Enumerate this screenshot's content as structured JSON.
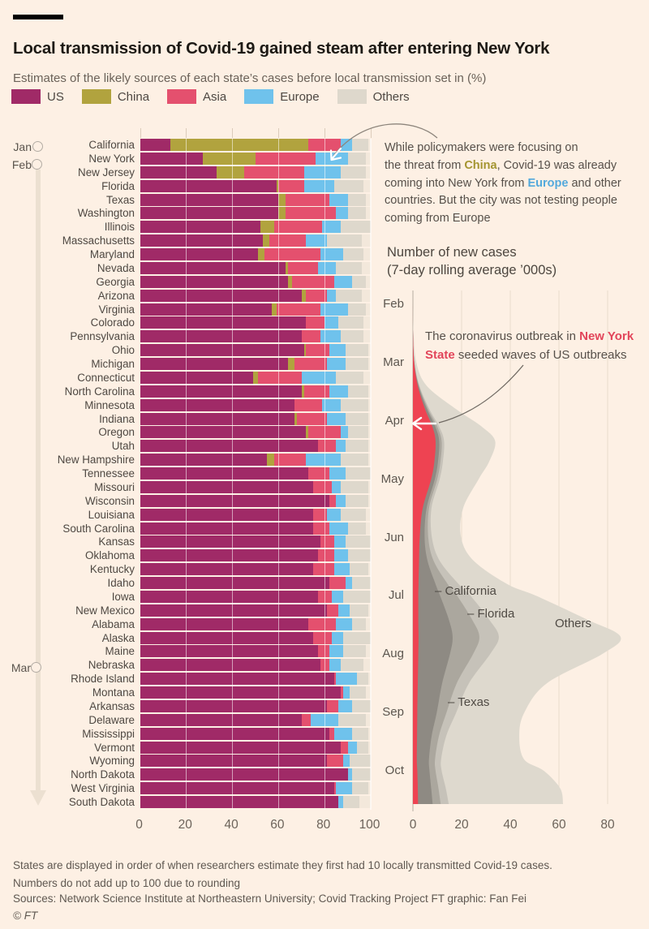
{
  "palette": {
    "china": "#a49531",
    "europe": "#53a9dc",
    "ny_red": "#e2455a",
    "background": "#fdf0e4"
  },
  "header": {
    "title": "Local transmission of Covid-19 gained steam after entering New York",
    "subtitle": "Estimates of the likely sources of each state’s cases before local transmission set in (%)"
  },
  "legend": [
    {
      "label": "US",
      "color": "#a02a67"
    },
    {
      "label": "China",
      "color": "#b1a33e"
    },
    {
      "label": "Asia",
      "color": "#e4506e"
    },
    {
      "label": "Europe",
      "color": "#6fc2ec"
    },
    {
      "label": "Others",
      "color": "#ded8cc"
    }
  ],
  "timeline": {
    "jan": "Jan",
    "feb": "Feb",
    "mar": "Mar"
  },
  "annotation_policy": {
    "parts": [
      {
        "text": "While policymakers were focusing on\nthe threat from "
      },
      {
        "text": "China",
        "color": "china"
      },
      {
        "text": ", Covid-19 was already\ncoming into New York from "
      },
      {
        "text": "Europe",
        "color": "europe"
      },
      {
        "text": " and other\ncountries. But the city was not testing people\ncoming from Europe"
      }
    ]
  },
  "right_chart_title": {
    "line1": "Number of new cases",
    "line2": "(7-day rolling average ’000s)"
  },
  "annotation_ny": {
    "parts": [
      {
        "text": "The coronavirus outbreak in "
      },
      {
        "text": "New York\nState",
        "color": "ny_red"
      },
      {
        "text": " seeded waves of US outbreaks"
      }
    ]
  },
  "stream_labels": {
    "california": "– California",
    "florida": "– Florida",
    "others": "Others",
    "texas": "– Texas"
  },
  "footer": {
    "note": "States are displayed in order of when researchers estimate they first had 10 locally transmitted Covid-19 cases. Numbers do not add up to 100 due to rounding",
    "sources": "Sources: Network Science Institute at Northeastern University; Covid Tracking Project  FT graphic: Fan Fei",
    "copyright": "© FT"
  },
  "chart_data": [
    {
      "type": "bar",
      "stacked": true,
      "orientation": "horizontal",
      "title": "Estimates of the likely sources of each state's cases before local transmission set in (%)",
      "series": [
        "US",
        "China",
        "Asia",
        "Europe",
        "Others"
      ],
      "colors": [
        "#a02a67",
        "#b1a33e",
        "#e4506e",
        "#6fc2ec",
        "#ded8cc"
      ],
      "x_ticks": [
        0,
        20,
        40,
        60,
        80,
        100
      ],
      "xlim": [
        0,
        100
      ],
      "states": [
        {
          "name": "California",
          "values": [
            13,
            60,
            14,
            5,
            7
          ]
        },
        {
          "name": "New York",
          "values": [
            27,
            23,
            26,
            14,
            8
          ]
        },
        {
          "name": "New Jersey",
          "values": [
            33,
            12,
            26,
            16,
            11
          ]
        },
        {
          "name": "Florida",
          "values": [
            59,
            1,
            11,
            13,
            13
          ]
        },
        {
          "name": "Texas",
          "values": [
            60,
            3,
            19,
            8,
            8
          ]
        },
        {
          "name": "Washington",
          "values": [
            60,
            3,
            22,
            5,
            8
          ]
        },
        {
          "name": "Illinois",
          "values": [
            52,
            6,
            21,
            8,
            13
          ]
        },
        {
          "name": "Massachusetts",
          "values": [
            53,
            3,
            16,
            9,
            15
          ]
        },
        {
          "name": "Maryland",
          "values": [
            51,
            3,
            24,
            10,
            9
          ]
        },
        {
          "name": "Nevada",
          "values": [
            63,
            1,
            13,
            8,
            11
          ]
        },
        {
          "name": "Georgia",
          "values": [
            64,
            2,
            18,
            8,
            6
          ]
        },
        {
          "name": "Arizona",
          "values": [
            70,
            2,
            9,
            4,
            11
          ]
        },
        {
          "name": "Virginia",
          "values": [
            57,
            2,
            19,
            12,
            8
          ]
        },
        {
          "name": "Colorado",
          "values": [
            72,
            0,
            8,
            6,
            11
          ]
        },
        {
          "name": "Pennsylvania",
          "values": [
            70,
            0,
            8,
            9,
            10
          ]
        },
        {
          "name": "Ohio",
          "values": [
            71,
            1,
            10,
            7,
            10
          ]
        },
        {
          "name": "Michigan",
          "values": [
            64,
            3,
            14,
            8,
            10
          ]
        },
        {
          "name": "Connecticut",
          "values": [
            49,
            2,
            19,
            15,
            12
          ]
        },
        {
          "name": "North Carolina",
          "values": [
            70,
            1,
            11,
            8,
            9
          ]
        },
        {
          "name": "Minnesota",
          "values": [
            67,
            0,
            12,
            8,
            12
          ]
        },
        {
          "name": "Indiana",
          "values": [
            67,
            1,
            13,
            8,
            10
          ]
        },
        {
          "name": "Oregon",
          "values": [
            72,
            1,
            14,
            3,
            9
          ]
        },
        {
          "name": "Utah",
          "values": [
            77,
            0,
            8,
            4,
            10
          ]
        },
        {
          "name": "New Hampshire",
          "values": [
            55,
            3,
            14,
            15,
            12
          ]
        },
        {
          "name": "Tennessee",
          "values": [
            73,
            0,
            9,
            7,
            11
          ]
        },
        {
          "name": "Missouri",
          "values": [
            75,
            0,
            8,
            4,
            12
          ]
        },
        {
          "name": "Wisconsin",
          "values": [
            82,
            0,
            3,
            4,
            10
          ]
        },
        {
          "name": "Louisiana",
          "values": [
            75,
            0,
            6,
            6,
            11
          ]
        },
        {
          "name": "South Carolina",
          "values": [
            75,
            0,
            7,
            8,
            8
          ]
        },
        {
          "name": "Kansas",
          "values": [
            78,
            0,
            6,
            5,
            11
          ]
        },
        {
          "name": "Oklahoma",
          "values": [
            77,
            0,
            7,
            6,
            10
          ]
        },
        {
          "name": "Kentucky",
          "values": [
            75,
            0,
            9,
            7,
            8
          ]
        },
        {
          "name": "Idaho",
          "values": [
            82,
            0,
            7,
            3,
            8
          ]
        },
        {
          "name": "Iowa",
          "values": [
            77,
            0,
            6,
            5,
            12
          ]
        },
        {
          "name": "New Mexico",
          "values": [
            81,
            0,
            5,
            5,
            8
          ]
        },
        {
          "name": "Alabama",
          "values": [
            73,
            0,
            12,
            7,
            6
          ]
        },
        {
          "name": "Alaska",
          "values": [
            75,
            0,
            8,
            5,
            12
          ]
        },
        {
          "name": "Maine",
          "values": [
            77,
            0,
            5,
            6,
            10
          ]
        },
        {
          "name": "Nebraska",
          "values": [
            78,
            0,
            4,
            5,
            10
          ]
        },
        {
          "name": "Rhode Island",
          "values": [
            84,
            0,
            1,
            9,
            5
          ]
        },
        {
          "name": "Montana",
          "values": [
            87,
            0,
            1,
            3,
            7
          ]
        },
        {
          "name": "Arkansas",
          "values": [
            81,
            0,
            5,
            6,
            8
          ]
        },
        {
          "name": "Delaware",
          "values": [
            70,
            0,
            4,
            12,
            12
          ]
        },
        {
          "name": "Mississippi",
          "values": [
            82,
            0,
            2,
            8,
            7
          ]
        },
        {
          "name": "Vermont",
          "values": [
            87,
            0,
            3,
            4,
            5
          ]
        },
        {
          "name": "Wyoming",
          "values": [
            81,
            0,
            7,
            3,
            9
          ]
        },
        {
          "name": "North Dakota",
          "values": [
            90,
            0,
            0,
            2,
            8
          ]
        },
        {
          "name": "West Virginia",
          "values": [
            84,
            0,
            1,
            7,
            7
          ]
        },
        {
          "name": "South Dakota",
          "values": [
            86,
            0,
            0,
            2,
            7
          ]
        }
      ]
    },
    {
      "type": "area",
      "stacked": true,
      "title": "Number of new cases (7-day rolling average '000s)",
      "time_axis": "vertical, Feb (top) to Oct (bottom)",
      "months": [
        "Feb",
        "Mar",
        "Apr",
        "May",
        "Jun",
        "Jul",
        "Aug",
        "Sep",
        "Oct"
      ],
      "x_ticks": [
        0,
        20,
        40,
        60,
        80
      ],
      "xlim": [
        0,
        80
      ],
      "t_months_from_feb": [
        0,
        0.5,
        1,
        1.4,
        1.8,
        2.1,
        2.35,
        2.7,
        3,
        3.5,
        4,
        4.4,
        4.8,
        5,
        5.4,
        5.7,
        6,
        6.5,
        7,
        7.4,
        7.8,
        8,
        8.3,
        8.57
      ],
      "series": [
        {
          "name": "New York State",
          "color": "#ee4352",
          "values": [
            0,
            0.05,
            0.5,
            2,
            5,
            8,
            9.3,
            8.8,
            7.5,
            4,
            2.8,
            2.5,
            2.3,
            2.2,
            2.2,
            2.3,
            2.2,
            2,
            1.8,
            1.7,
            1.6,
            1.8,
            2,
            2.1
          ]
        },
        {
          "name": "California",
          "color": "#8e8a83",
          "values": [
            0,
            0,
            0.1,
            0.3,
            0.8,
            1.2,
            1.5,
            1.5,
            1.5,
            1.6,
            2,
            3.5,
            7,
            9,
            12.5,
            14,
            13,
            10,
            8,
            6,
            5,
            5,
            5.5,
            6
          ]
        },
        {
          "name": "Florida",
          "color": "#aba79e",
          "values": [
            0,
            0,
            0,
            0.2,
            0.5,
            0.8,
            1,
            1,
            1,
            1,
            1.5,
            2.5,
            5,
            7,
            9.5,
            11,
            9.5,
            6,
            4,
            3,
            2.5,
            2.5,
            3,
            3.3
          ]
        },
        {
          "name": "Texas",
          "color": "#c6c2b9",
          "values": [
            0,
            0,
            0,
            0.2,
            0.5,
            0.8,
            1,
            1,
            1,
            1,
            1.5,
            2.5,
            4.5,
            5.5,
            7,
            8,
            7,
            5,
            4,
            3,
            2.5,
            2.5,
            3,
            3.3
          ]
        },
        {
          "name": "Others",
          "color": "#ded9ce",
          "values": [
            0,
            0.2,
            0.8,
            3,
            11,
            17.5,
            21,
            19,
            16,
            13,
            12,
            14,
            20,
            27,
            40,
            50,
            46,
            32,
            28,
            30,
            34,
            42,
            47,
            47
          ]
        }
      ]
    }
  ]
}
